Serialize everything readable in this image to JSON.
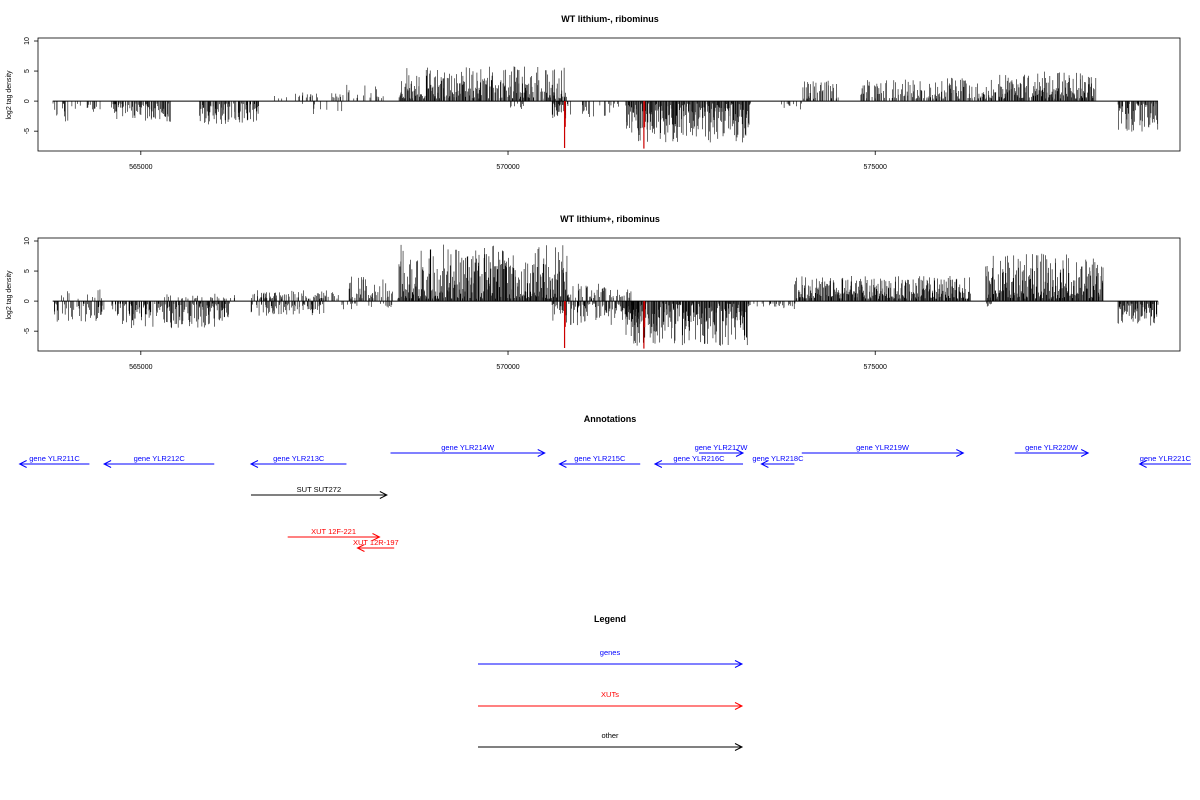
{
  "colors": {
    "bars": "#000000",
    "highlight": "#cc0000",
    "genes": "#0000ff",
    "xuts": "#ff0000",
    "other": "#000000"
  },
  "chart_data": [
    {
      "type": "bar",
      "title": "WT lithium-, ribominus",
      "ylabel": "log2 tag density",
      "xlim": [
        563600,
        579150
      ],
      "ylim": [
        -8.3,
        10.5
      ],
      "x_ticks": [
        565000,
        570000,
        575000
      ],
      "x_tick_labels": [
        "565000",
        "570000",
        "575000"
      ],
      "y_ticks": [
        -5,
        0,
        5,
        10
      ],
      "y_tick_labels": [
        "-5",
        "0",
        "5",
        "10"
      ],
      "data_range": [
        563800,
        578850
      ],
      "highlight_x": [
        570770,
        571850
      ],
      "highlight_min": [
        -7.8,
        -7.9
      ],
      "regions": [
        {
          "from": 563800,
          "to": 564000,
          "sign": -1,
          "max": 3.6,
          "density": 0.35
        },
        {
          "from": 564000,
          "to": 564500,
          "sign": -1,
          "max": 2.0,
          "density": 0.3
        },
        {
          "from": 564600,
          "to": 565400,
          "sign": -1,
          "max": 3.6,
          "density": 0.7
        },
        {
          "from": 565800,
          "to": 566600,
          "sign": -1,
          "max": 3.9,
          "density": 0.75
        },
        {
          "from": 566800,
          "to": 567000,
          "sign": 1,
          "max": 1.5,
          "density": 0.2
        },
        {
          "from": 567100,
          "to": 567400,
          "sign": 1,
          "max": 2.0,
          "density": 0.3
        },
        {
          "from": 567200,
          "to": 567800,
          "sign": -1,
          "max": 2.5,
          "density": 0.2
        },
        {
          "from": 567600,
          "to": 568300,
          "sign": 1,
          "max": 2.8,
          "density": 0.25
        },
        {
          "from": 568500,
          "to": 570800,
          "sign": 1,
          "max": 5.8,
          "density": 0.85
        },
        {
          "from": 570000,
          "to": 570200,
          "sign": -1,
          "max": 1.5,
          "density": 0.2
        },
        {
          "from": 570600,
          "to": 570850,
          "sign": -1,
          "max": 3.0,
          "density": 0.5
        },
        {
          "from": 571000,
          "to": 571500,
          "sign": -1,
          "max": 3.0,
          "density": 0.35
        },
        {
          "from": 571600,
          "to": 573300,
          "sign": -1,
          "max": 7.0,
          "density": 0.95
        },
        {
          "from": 573700,
          "to": 574000,
          "sign": -1,
          "max": 1.8,
          "density": 0.25
        },
        {
          "from": 574000,
          "to": 574500,
          "sign": 1,
          "max": 3.5,
          "density": 0.35
        },
        {
          "from": 574800,
          "to": 576600,
          "sign": 1,
          "max": 4.0,
          "density": 0.6
        },
        {
          "from": 576600,
          "to": 578000,
          "sign": 1,
          "max": 5.0,
          "density": 0.9
        },
        {
          "from": 578300,
          "to": 578850,
          "sign": -1,
          "max": 5.2,
          "density": 0.8
        }
      ]
    },
    {
      "type": "bar",
      "title": "WT lithium+, ribominus",
      "ylabel": "log2 tag density",
      "xlim": [
        563600,
        579150
      ],
      "ylim": [
        -8.3,
        10.5
      ],
      "x_ticks": [
        565000,
        570000,
        575000
      ],
      "x_tick_labels": [
        "565000",
        "570000",
        "575000"
      ],
      "y_ticks": [
        -5,
        0,
        5,
        10
      ],
      "y_tick_labels": [
        "-5",
        "0",
        "5",
        "10"
      ],
      "data_range": [
        563800,
        578850
      ],
      "highlight_x": [
        570770,
        571850
      ],
      "highlight_min": [
        -7.8,
        -7.9
      ],
      "regions": [
        {
          "from": 563800,
          "to": 564500,
          "sign": -1,
          "max": 3.5,
          "density": 0.5
        },
        {
          "from": 563900,
          "to": 564500,
          "sign": 1,
          "max": 2.0,
          "density": 0.25
        },
        {
          "from": 564600,
          "to": 566200,
          "sign": -1,
          "max": 4.5,
          "density": 0.8
        },
        {
          "from": 565300,
          "to": 566300,
          "sign": 1,
          "max": 1.3,
          "density": 0.25
        },
        {
          "from": 566500,
          "to": 567500,
          "sign": -1,
          "max": 2.5,
          "density": 0.5
        },
        {
          "from": 566500,
          "to": 567700,
          "sign": 1,
          "max": 1.8,
          "density": 0.45
        },
        {
          "from": 567800,
          "to": 568500,
          "sign": 1,
          "max": 4.5,
          "density": 0.55
        },
        {
          "from": 567700,
          "to": 568500,
          "sign": -1,
          "max": 1.5,
          "density": 0.3
        },
        {
          "from": 568500,
          "to": 570800,
          "sign": 1,
          "max": 9.5,
          "density": 1.0
        },
        {
          "from": 570800,
          "to": 571700,
          "sign": 1,
          "max": 3.0,
          "density": 0.45
        },
        {
          "from": 570600,
          "to": 571800,
          "sign": -1,
          "max": 4.0,
          "density": 0.6
        },
        {
          "from": 571600,
          "to": 573300,
          "sign": -1,
          "max": 7.5,
          "density": 0.95
        },
        {
          "from": 573300,
          "to": 573900,
          "sign": -1,
          "max": 1.5,
          "density": 0.3
        },
        {
          "from": 573900,
          "to": 576300,
          "sign": 1,
          "max": 4.2,
          "density": 0.95
        },
        {
          "from": 576500,
          "to": 576700,
          "sign": -1,
          "max": 1.8,
          "density": 0.2
        },
        {
          "from": 576500,
          "to": 578100,
          "sign": 1,
          "max": 8.0,
          "density": 1.0
        },
        {
          "from": 578300,
          "to": 578850,
          "sign": -1,
          "max": 4.2,
          "density": 0.8
        }
      ]
    }
  ],
  "annotations": {
    "title": "Annotations",
    "items": [
      {
        "label": "gene YLR211C",
        "from": 564300,
        "to": 563350,
        "row": 0,
        "category": "genes"
      },
      {
        "label": "gene YLR212C",
        "from": 566000,
        "to": 564500,
        "row": 0,
        "category": "genes"
      },
      {
        "label": "gene YLR213C",
        "from": 567800,
        "to": 566500,
        "row": 0,
        "category": "genes"
      },
      {
        "label": "gene YLR214W",
        "from": 568400,
        "to": 570500,
        "row": 1,
        "category": "genes"
      },
      {
        "label": "gene YLR215C",
        "from": 571800,
        "to": 570700,
        "row": 0,
        "category": "genes"
      },
      {
        "label": "gene YLR216C",
        "from": 573200,
        "to": 572000,
        "row": 0,
        "category": "genes"
      },
      {
        "label": "gene YLR217W",
        "from": 572600,
        "to": 573200,
        "row": 1,
        "category": "genes"
      },
      {
        "label": "gene YLR218C",
        "from": 573900,
        "to": 573450,
        "row": 0,
        "category": "genes"
      },
      {
        "label": "gene YLR219W",
        "from": 574000,
        "to": 576200,
        "row": 1,
        "category": "genes"
      },
      {
        "label": "gene YLR220W",
        "from": 576900,
        "to": 577900,
        "row": 1,
        "category": "genes"
      },
      {
        "label": "gene YLR221C",
        "from": 579300,
        "to": 578600,
        "row": 0,
        "category": "genes"
      },
      {
        "label": "SUT SUT272",
        "from": 566500,
        "to": 568350,
        "row": 2,
        "category": "other"
      },
      {
        "label": "XUT 12F-221",
        "from": 567000,
        "to": 568250,
        "row": 4,
        "category": "xuts"
      },
      {
        "label": "XUT 12R-197",
        "from": 568450,
        "to": 567950,
        "row": 5,
        "category": "xuts"
      }
    ]
  },
  "legend": {
    "title": "Legend",
    "items": [
      {
        "label": "genes",
        "category": "genes"
      },
      {
        "label": "XUTs",
        "category": "xuts"
      },
      {
        "label": "other",
        "category": "other"
      }
    ]
  }
}
